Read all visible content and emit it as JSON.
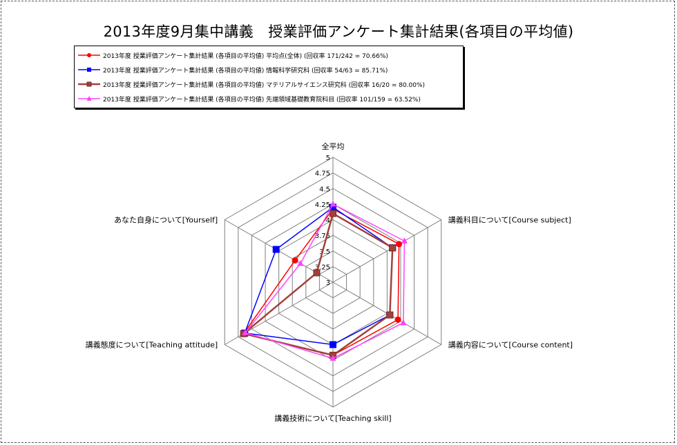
{
  "chart_data": {
    "type": "radar",
    "title": "2013年度9月集中講義　授業評価アンケート集計結果(各項目の平均値)",
    "axes": [
      "全平均",
      "講義科目について[Course subject]",
      "講義内容について[Course content]",
      "講義技術について[Teaching skill]",
      "講義態度について[Teaching attitude]",
      "あなた自身について[Yourself]"
    ],
    "rlim": [
      3,
      5
    ],
    "ticks": [
      "3",
      "3.25",
      "3.5",
      "3.75",
      "4",
      "4.25",
      "4.5",
      "4.75",
      "5"
    ],
    "grid": true,
    "legend_position": "top-left",
    "series": [
      {
        "name": "2013年度 授業評価アンケート集計結果 (各項目の平均値) 平均点(全体) (回収率 171/242 = 70.66%)",
        "color": "#ff0000",
        "marker": "circle",
        "values": [
          4.17,
          4.22,
          4.2,
          4.17,
          4.65,
          3.7
        ]
      },
      {
        "name": "2013年度 授業評価アンケート集計結果 (各項目の平均値) 情報科学研究科 (回収率 54/63 = 85.71%)",
        "color": "#0000ff",
        "marker": "square",
        "values": [
          4.2,
          4.1,
          4.05,
          4.0,
          4.63,
          4.05
        ]
      },
      {
        "name": "2013年度 授業評価アンケート集計結果 (各項目の平均値) マテリアルサイエンス研究科 (回収率 16/20 = 80.00%)",
        "color": "#a0413a",
        "marker": "square",
        "values": [
          4.1,
          4.1,
          4.05,
          4.17,
          4.65,
          3.3
        ]
      },
      {
        "name": "2013年度 授業評価アンケート集計結果 (各項目の平均値) 先端領域基礎教育院科目 (回収率 101/159 = 63.52%)",
        "color": "#ff40ff",
        "marker": "triangle",
        "values": [
          4.25,
          4.32,
          4.3,
          4.22,
          4.62,
          3.6
        ]
      }
    ]
  }
}
